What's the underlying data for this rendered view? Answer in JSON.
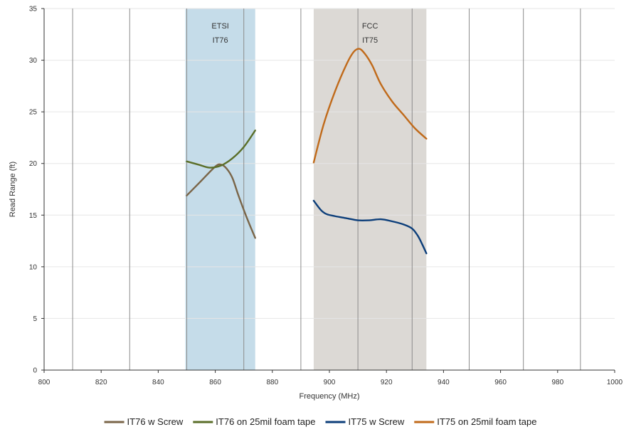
{
  "chart_data": {
    "type": "line",
    "title": "",
    "xlabel": "Frequency (MHz)",
    "ylabel": "Read Range (ft)",
    "xlim": [
      800,
      1000
    ],
    "ylim": [
      0,
      35
    ],
    "xticks": [
      800,
      820,
      840,
      860,
      880,
      900,
      920,
      940,
      960,
      980,
      1000
    ],
    "yticks": [
      0,
      5,
      10,
      15,
      20,
      25,
      30,
      35
    ],
    "vertical_gridlines": [
      810,
      830,
      850,
      870,
      890,
      910,
      929,
      949,
      968,
      988
    ],
    "horizontal_gridlines": true,
    "legend_position": "bottom",
    "bands": [
      {
        "label_line1": "ETSI",
        "label_line2": "IT76",
        "x_start": 849.5,
        "x_end": 874,
        "color": "#c5dce9"
      },
      {
        "label_line1": "FCC",
        "label_line2": "IT75",
        "x_start": 894.5,
        "x_end": 934,
        "color": "#dcd9d5"
      }
    ],
    "series": [
      {
        "name": "IT76 w Screw",
        "color": "#7a6548",
        "points": [
          [
            850,
            16.9
          ],
          [
            855,
            18.3
          ],
          [
            860,
            19.7
          ],
          [
            862,
            19.9
          ],
          [
            864,
            19.5
          ],
          [
            866,
            18.6
          ],
          [
            868,
            17.0
          ],
          [
            870,
            15.5
          ],
          [
            872,
            14.1
          ],
          [
            874,
            12.8
          ]
        ]
      },
      {
        "name": "IT76 on 25mil foam tape",
        "color": "#5a6e28",
        "points": [
          [
            850,
            20.2
          ],
          [
            854,
            19.9
          ],
          [
            858,
            19.6
          ],
          [
            862,
            19.8
          ],
          [
            866,
            20.5
          ],
          [
            870,
            21.6
          ],
          [
            874,
            23.2
          ]
        ]
      },
      {
        "name": "IT75 w Screw",
        "color": "#0c3e7a",
        "points": [
          [
            894.5,
            16.4
          ],
          [
            897,
            15.5
          ],
          [
            899,
            15.1
          ],
          [
            902,
            14.9
          ],
          [
            906,
            14.7
          ],
          [
            910,
            14.5
          ],
          [
            914,
            14.5
          ],
          [
            918,
            14.6
          ],
          [
            922,
            14.4
          ],
          [
            926,
            14.1
          ],
          [
            929,
            13.7
          ],
          [
            931,
            13.0
          ],
          [
            932.5,
            12.2
          ],
          [
            934,
            11.3
          ]
        ]
      },
      {
        "name": "IT75 on 25mil foam tape",
        "color": "#c06a1a",
        "points": [
          [
            894.5,
            20.1
          ],
          [
            898,
            23.8
          ],
          [
            902,
            27.0
          ],
          [
            906,
            29.6
          ],
          [
            908.5,
            30.8
          ],
          [
            910.5,
            31.1
          ],
          [
            912.5,
            30.6
          ],
          [
            915,
            29.5
          ],
          [
            918,
            27.7
          ],
          [
            922,
            26.0
          ],
          [
            926,
            24.7
          ],
          [
            930,
            23.4
          ],
          [
            934,
            22.4
          ]
        ]
      }
    ]
  }
}
